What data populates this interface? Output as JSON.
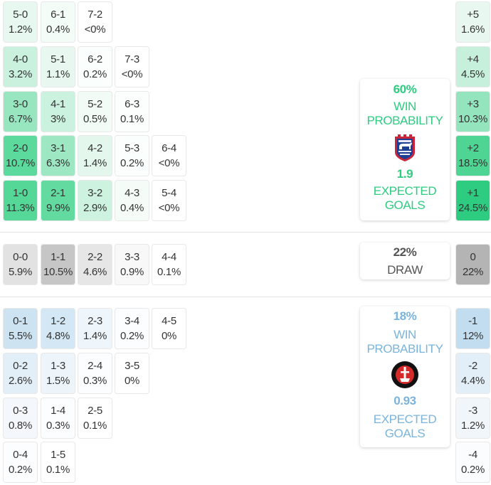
{
  "colors": {
    "home_accent": "#2ecc80",
    "away_accent": "#7ab4dc",
    "draw_accent": "#555555",
    "divider": "#e3e3e3"
  },
  "home": {
    "team_icon": "ipswich-town-crest-icon",
    "win_pct": "60%",
    "win_label_1": "WIN",
    "win_label_2": "PROBABILITY",
    "xg": "1.9",
    "xg_label_1": "EXPECTED",
    "xg_label_2": "GOALS"
  },
  "draw": {
    "pct": "22%",
    "label": "DRAW"
  },
  "away": {
    "team_icon": "charlton-athletic-crest-icon",
    "win_pct": "18%",
    "win_label_1": "WIN",
    "win_label_2": "PROBABILITY",
    "xg": "0.93",
    "xg_label_1": "EXPECTED",
    "xg_label_2": "GOALS"
  },
  "home_rows": [
    [
      {
        "score": "5-0",
        "pct": "1.2%",
        "bg": "#e6f8ef"
      },
      {
        "score": "6-1",
        "pct": "0.4%",
        "bg": "#f4fcf8"
      },
      {
        "score": "7-2",
        "pct": "<0%",
        "bg": "#ffffff"
      }
    ],
    [
      {
        "score": "4-0",
        "pct": "3.2%",
        "bg": "#c9f1dd"
      },
      {
        "score": "5-1",
        "pct": "1.1%",
        "bg": "#e8f8f0"
      },
      {
        "score": "6-2",
        "pct": "0.2%",
        "bg": "#fafefc"
      },
      {
        "score": "7-3",
        "pct": "<0%",
        "bg": "#ffffff"
      }
    ],
    [
      {
        "score": "3-0",
        "pct": "6.7%",
        "bg": "#98e6c0"
      },
      {
        "score": "4-1",
        "pct": "3%",
        "bg": "#cbf2de"
      },
      {
        "score": "5-2",
        "pct": "0.5%",
        "bg": "#f2fbf6"
      },
      {
        "score": "6-3",
        "pct": "0.1%",
        "bg": "#fcfefd"
      }
    ],
    [
      {
        "score": "2-0",
        "pct": "10.7%",
        "bg": "#5cd99c"
      },
      {
        "score": "3-1",
        "pct": "6.3%",
        "bg": "#9de7c3"
      },
      {
        "score": "4-2",
        "pct": "1.4%",
        "bg": "#e3f7ed"
      },
      {
        "score": "5-3",
        "pct": "0.2%",
        "bg": "#fafefc"
      },
      {
        "score": "6-4",
        "pct": "<0%",
        "bg": "#ffffff"
      }
    ],
    [
      {
        "score": "1-0",
        "pct": "11.3%",
        "bg": "#55d797"
      },
      {
        "score": "2-1",
        "pct": "9.9%",
        "bg": "#63daa0"
      },
      {
        "score": "3-2",
        "pct": "2.9%",
        "bg": "#cdf2df"
      },
      {
        "score": "4-3",
        "pct": "0.4%",
        "bg": "#f5fcf8"
      },
      {
        "score": "5-4",
        "pct": "<0%",
        "bg": "#ffffff"
      }
    ]
  ],
  "draw_row": [
    {
      "score": "0-0",
      "pct": "5.9%",
      "bg": "#e2e2e2"
    },
    {
      "score": "1-1",
      "pct": "10.5%",
      "bg": "#c6c6c6"
    },
    {
      "score": "2-2",
      "pct": "4.6%",
      "bg": "#e6e6e6"
    },
    {
      "score": "3-3",
      "pct": "0.9%",
      "bg": "#f8f8f8"
    },
    {
      "score": "4-4",
      "pct": "0.1%",
      "bg": "#ffffff"
    }
  ],
  "away_rows": [
    [
      {
        "score": "0-1",
        "pct": "5.5%",
        "bg": "#cde3f2"
      },
      {
        "score": "1-2",
        "pct": "4.8%",
        "bg": "#d3e7f4"
      },
      {
        "score": "2-3",
        "pct": "1.4%",
        "bg": "#eef5fb"
      },
      {
        "score": "3-4",
        "pct": "0.2%",
        "bg": "#fcfdfe"
      },
      {
        "score": "4-5",
        "pct": "0%",
        "bg": "#ffffff"
      }
    ],
    [
      {
        "score": "0-2",
        "pct": "2.6%",
        "bg": "#e3eff8"
      },
      {
        "score": "1-3",
        "pct": "1.5%",
        "bg": "#edf4fa"
      },
      {
        "score": "2-4",
        "pct": "0.3%",
        "bg": "#fbfdfe"
      },
      {
        "score": "3-5",
        "pct": "0%",
        "bg": "#ffffff"
      }
    ],
    [
      {
        "score": "0-3",
        "pct": "0.8%",
        "bg": "#f4f8fc"
      },
      {
        "score": "1-4",
        "pct": "0.3%",
        "bg": "#fbfdfe"
      },
      {
        "score": "2-5",
        "pct": "0.1%",
        "bg": "#ffffff"
      }
    ],
    [
      {
        "score": "0-4",
        "pct": "0.2%",
        "bg": "#fcfdfe"
      },
      {
        "score": "1-5",
        "pct": "0.1%",
        "bg": "#ffffff"
      }
    ]
  ],
  "margins_home": [
    {
      "label": "+5",
      "pct": "1.6%",
      "bg": "#e8f8f0"
    },
    {
      "label": "+4",
      "pct": "4.5%",
      "bg": "#c6f0db"
    },
    {
      "label": "+3",
      "pct": "10.3%",
      "bg": "#94e5bd"
    },
    {
      "label": "+2",
      "pct": "18.5%",
      "bg": "#4fd593"
    },
    {
      "label": "+1",
      "pct": "24.5%",
      "bg": "#2ecc80"
    }
  ],
  "margin_draw": {
    "label": "0",
    "pct": "22%",
    "bg": "#b4b4b4"
  },
  "margins_away": [
    {
      "label": "-1",
      "pct": "12%",
      "bg": "#c3ddf0"
    },
    {
      "label": "-2",
      "pct": "4.4%",
      "bg": "#e3eff8"
    },
    {
      "label": "-3",
      "pct": "1.2%",
      "bg": "#f1f6fb"
    },
    {
      "label": "-4",
      "pct": "0.2%",
      "bg": "#fbfcfe"
    }
  ],
  "chart_data": {
    "type": "heatmap",
    "title": "Correct score probabilities",
    "home_team_win_probability": 60,
    "draw_probability": 22,
    "away_team_win_probability": 18,
    "home_expected_goals": 1.9,
    "away_expected_goals": 0.93,
    "scores": {
      "1-0": 11.3,
      "2-0": 10.7,
      "2-1": 9.9,
      "3-0": 6.7,
      "3-1": 6.3,
      "4-0": 3.2,
      "4-1": 3.0,
      "3-2": 2.9,
      "4-2": 1.4,
      "5-0": 1.2,
      "5-1": 1.1,
      "5-2": 0.5,
      "6-1": 0.4,
      "4-3": 0.4,
      "6-2": 0.2,
      "5-3": 0.2,
      "6-3": 0.1,
      "7-2": "<0",
      "7-3": "<0",
      "6-4": "<0",
      "5-4": "<0",
      "0-0": 5.9,
      "1-1": 10.5,
      "2-2": 4.6,
      "3-3": 0.9,
      "4-4": 0.1,
      "0-1": 5.5,
      "1-2": 4.8,
      "2-3": 1.4,
      "3-4": 0.2,
      "4-5": 0,
      "0-2": 2.6,
      "1-3": 1.5,
      "2-4": 0.3,
      "3-5": 0,
      "0-3": 0.8,
      "1-4": 0.3,
      "2-5": 0.1,
      "0-4": 0.2,
      "1-5": 0.1
    },
    "goal_margins": {
      "categories": [
        "+5",
        "+4",
        "+3",
        "+2",
        "+1",
        "0",
        "-1",
        "-2",
        "-3",
        "-4"
      ],
      "values": [
        1.6,
        4.5,
        10.3,
        18.5,
        24.5,
        22,
        12,
        4.4,
        1.2,
        0.2
      ]
    }
  }
}
